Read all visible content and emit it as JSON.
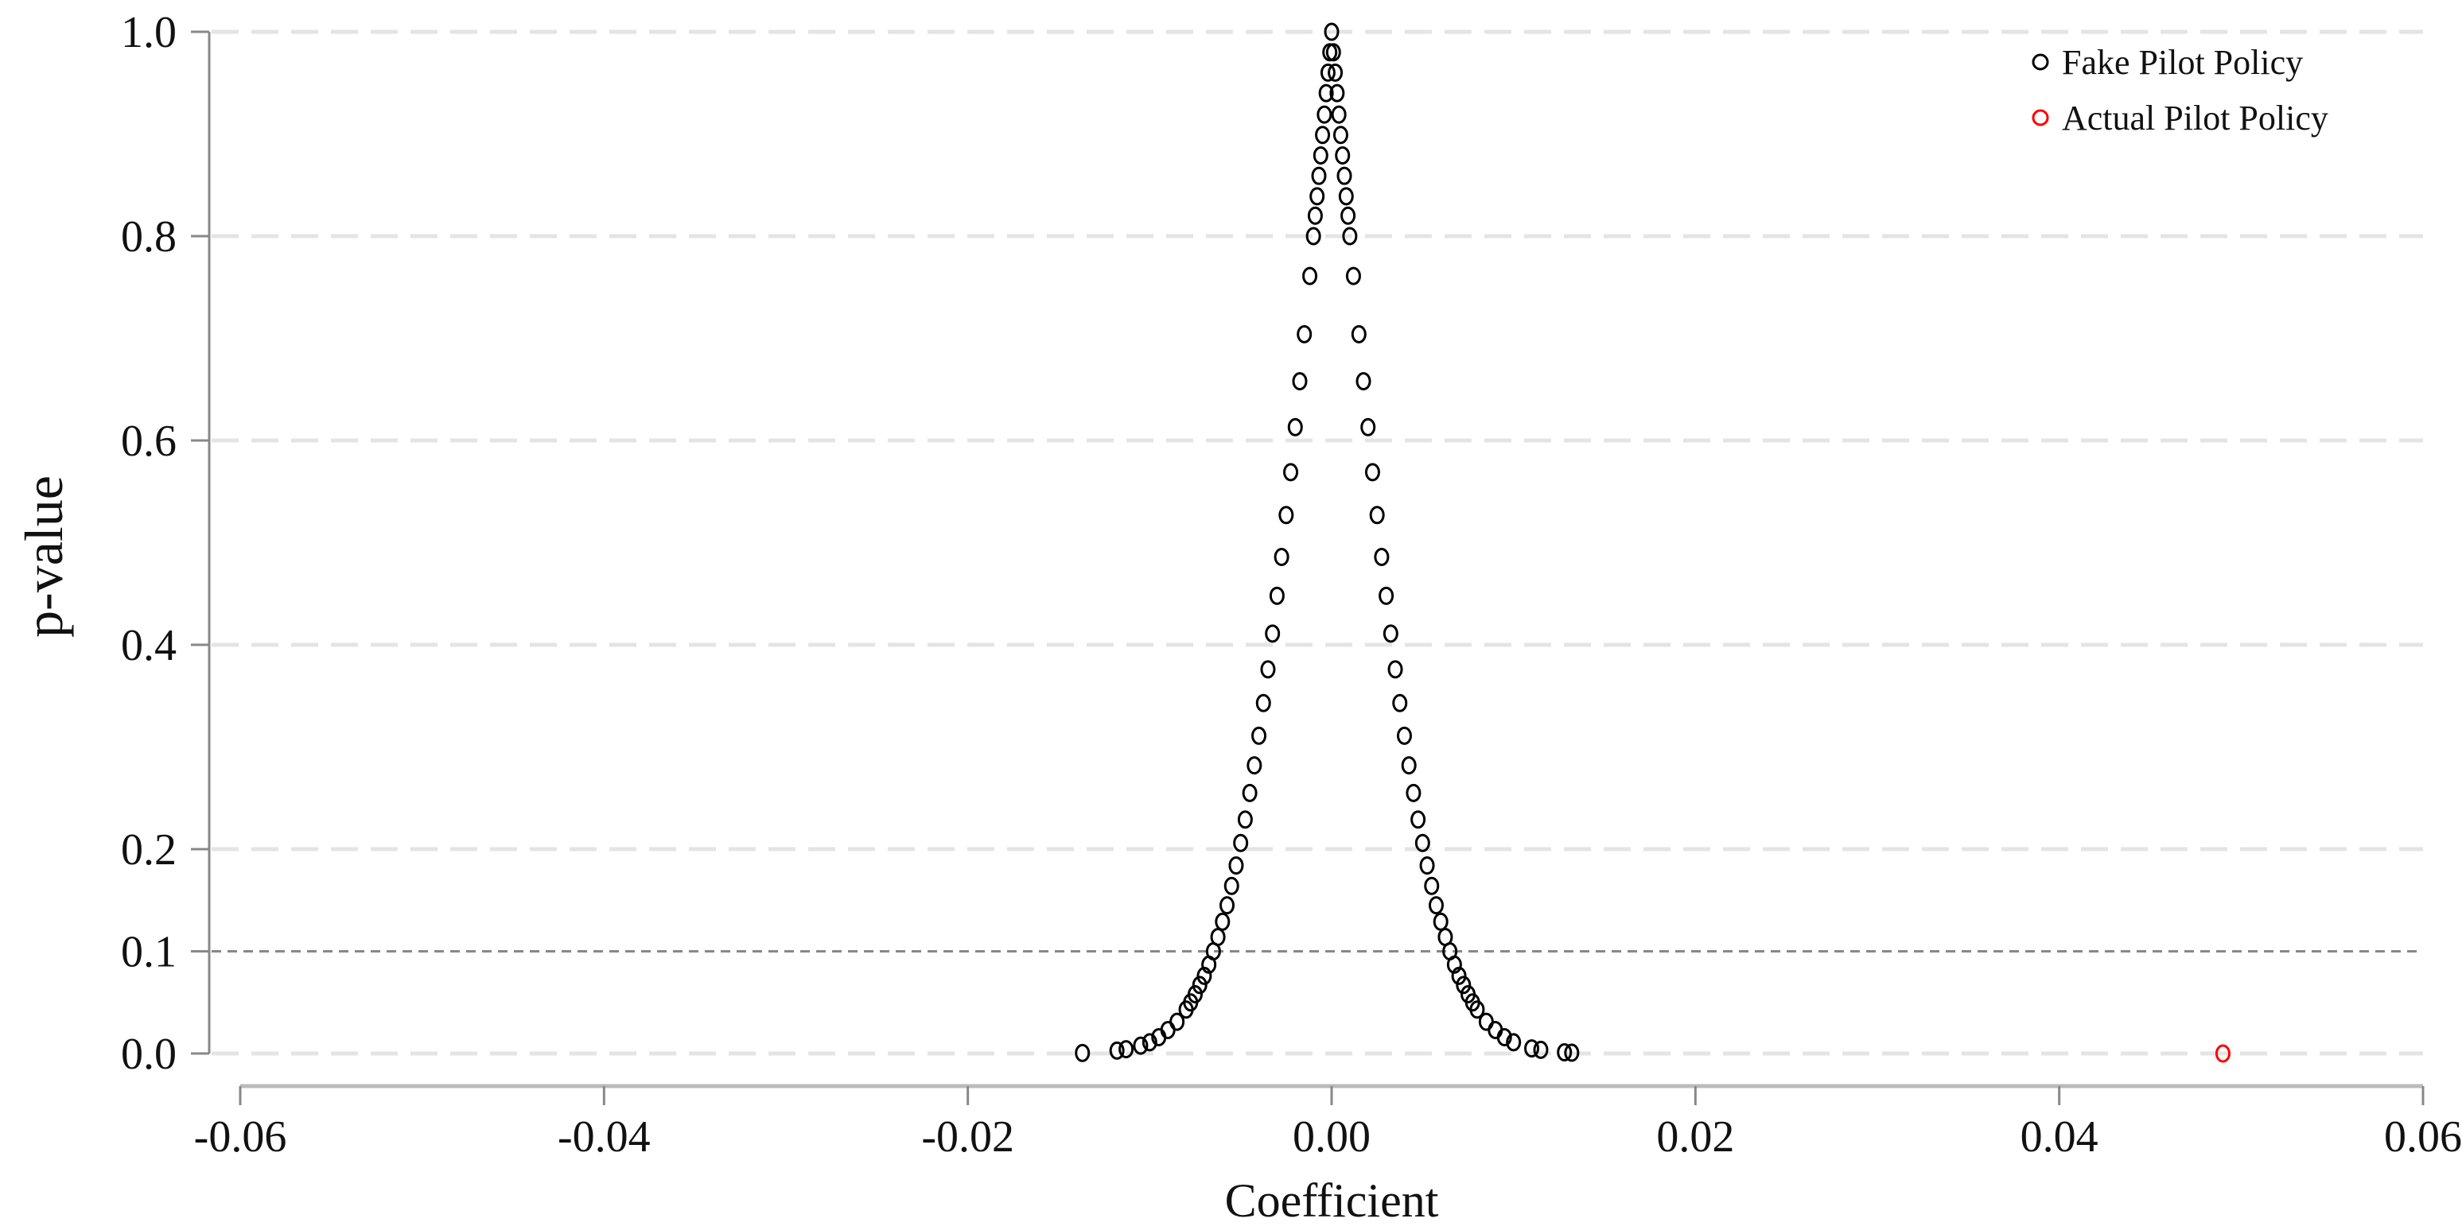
{
  "chart_data": {
    "type": "scatter",
    "xlabel": "Coefficient",
    "ylabel": "p-value",
    "xlim": [
      -0.06,
      0.06
    ],
    "ylim": [
      0.0,
      1.0
    ],
    "xticks": [
      "-0.06",
      "-0.04",
      "-0.02",
      "0.00",
      "0.02",
      "0.04",
      "0.06"
    ],
    "xtick_values": [
      -0.06,
      -0.04,
      -0.02,
      0.0,
      0.02,
      0.04,
      0.06
    ],
    "yticks": [
      "0.0",
      "0.1",
      "0.2",
      "0.4",
      "0.6",
      "0.8",
      "1.0"
    ],
    "ytick_values": [
      0.0,
      0.1,
      0.2,
      0.4,
      0.6,
      0.8,
      1.0
    ],
    "grid": "horizontal dashed (light gray)",
    "reference_line": {
      "y": 0.1,
      "style": "dashed",
      "color": "#888888"
    },
    "legend_position": "top-right",
    "series": [
      {
        "name": "Fake Pilot Policy",
        "color": "#000000",
        "marker": "open-circle",
        "x": [
          0,
          0.0001,
          0.0002,
          0.0003,
          0.0004,
          0.0005,
          0.0006,
          0.0007,
          0.0008,
          0.0009,
          0.001,
          0.0012,
          0.0015,
          0.00175,
          0.002,
          0.00225,
          0.0025,
          0.00275,
          0.003,
          0.00325,
          0.0035,
          0.00375,
          0.004,
          0.00425,
          0.0045,
          0.00475,
          0.005,
          0.00525,
          0.0055,
          0.00575,
          0.006,
          0.00625,
          0.0065,
          0.00675,
          0.007,
          0.00725,
          0.0075,
          0.00775,
          0.008,
          0.0085,
          0.009,
          0.0095,
          0.01,
          0.011,
          0.0115,
          0.0128,
          0.0132,
          -0.0001,
          -0.0002,
          -0.0003,
          -0.0004,
          -0.0005,
          -0.0006,
          -0.0007,
          -0.0008,
          -0.0009,
          -0.001,
          -0.0012,
          -0.0015,
          -0.00175,
          -0.002,
          -0.00225,
          -0.0025,
          -0.00275,
          -0.003,
          -0.00325,
          -0.0035,
          -0.00375,
          -0.004,
          -0.00425,
          -0.0045,
          -0.00475,
          -0.005,
          -0.00525,
          -0.0055,
          -0.00575,
          -0.006,
          -0.00625,
          -0.0065,
          -0.00675,
          -0.007,
          -0.00725,
          -0.0075,
          -0.00775,
          -0.008,
          -0.0085,
          -0.009,
          -0.0095,
          -0.01,
          -0.0105,
          -0.0113,
          -0.0118,
          -0.0137
        ],
        "y": [
          1.0,
          0.98,
          0.96,
          0.94,
          0.919,
          0.899,
          0.879,
          0.859,
          0.839,
          0.82,
          0.8,
          0.761,
          0.704,
          0.658,
          0.613,
          0.569,
          0.527,
          0.486,
          0.448,
          0.411,
          0.376,
          0.343,
          0.311,
          0.282,
          0.255,
          0.229,
          0.206,
          0.184,
          0.164,
          0.145,
          0.129,
          0.114,
          0.1,
          0.087,
          0.076,
          0.067,
          0.058,
          0.05,
          0.043,
          0.031,
          0.023,
          0.016,
          0.011,
          0.005,
          0.0036,
          0.0012,
          0.0008,
          0.98,
          0.96,
          0.94,
          0.919,
          0.899,
          0.879,
          0.859,
          0.839,
          0.82,
          0.8,
          0.761,
          0.704,
          0.658,
          0.613,
          0.569,
          0.527,
          0.486,
          0.448,
          0.411,
          0.376,
          0.343,
          0.311,
          0.282,
          0.255,
          0.229,
          0.206,
          0.184,
          0.164,
          0.145,
          0.129,
          0.114,
          0.1,
          0.087,
          0.076,
          0.067,
          0.058,
          0.05,
          0.043,
          0.031,
          0.023,
          0.016,
          0.011,
          0.0077,
          0.0042,
          0.0028,
          0.0005
        ]
      },
      {
        "name": "Actual Pilot Policy",
        "color": "#ff0000",
        "marker": "open-circle",
        "x": [
          0.049
        ],
        "y": [
          0.0
        ]
      }
    ]
  }
}
